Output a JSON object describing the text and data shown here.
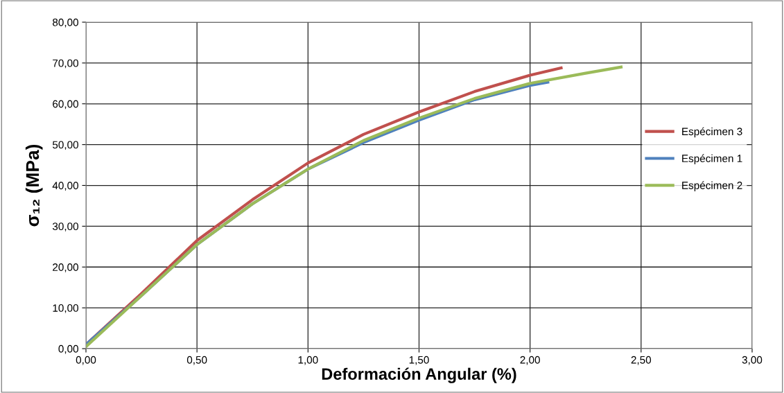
{
  "chart_data": {
    "type": "line",
    "xlabel": "Deformación Angular (%)",
    "ylabel": "σ₁₂ (MPa)",
    "xlim": [
      0,
      3
    ],
    "ylim": [
      0,
      80
    ],
    "xticks": [
      {
        "value": 0,
        "label": "0,00"
      },
      {
        "value": 0.5,
        "label": "0,50"
      },
      {
        "value": 1,
        "label": "1,00"
      },
      {
        "value": 1.5,
        "label": "1,50"
      },
      {
        "value": 2,
        "label": "2,00"
      },
      {
        "value": 2.5,
        "label": "2,50"
      },
      {
        "value": 3,
        "label": "3,00"
      }
    ],
    "yticks": [
      {
        "value": 0,
        "label": "0,00"
      },
      {
        "value": 10,
        "label": "10,00"
      },
      {
        "value": 20,
        "label": "20,00"
      },
      {
        "value": 30,
        "label": "30,00"
      },
      {
        "value": 40,
        "label": "40,00"
      },
      {
        "value": 50,
        "label": "50,00"
      },
      {
        "value": 60,
        "label": "60,00"
      },
      {
        "value": 70,
        "label": "70,00"
      },
      {
        "value": 80,
        "label": "80,00"
      }
    ],
    "grid": true,
    "legend": "right",
    "marker": "none",
    "line_style": "solid",
    "series": [
      {
        "name": "Espécimen 3",
        "color": "#c0504d",
        "x": [
          0,
          0.25,
          0.5,
          0.75,
          1.0,
          1.25,
          1.5,
          1.75,
          2.0,
          2.14
        ],
        "values": [
          1.0,
          13.5,
          26.5,
          36.5,
          45.5,
          52.5,
          58,
          63,
          67,
          68.8
        ]
      },
      {
        "name": "Espécimen 1",
        "color": "#4f81bd",
        "x": [
          0,
          0.25,
          0.5,
          0.75,
          1.0,
          1.25,
          1.5,
          1.75,
          2.0,
          2.08
        ],
        "values": [
          1.0,
          13,
          25.5,
          35.5,
          44,
          50.5,
          56,
          61,
          64.5,
          65.3
        ]
      },
      {
        "name": "Espécimen 2",
        "color": "#9bbb59",
        "x": [
          0,
          0.25,
          0.5,
          0.75,
          1.0,
          1.25,
          1.5,
          1.75,
          2.0,
          2.25,
          2.41
        ],
        "values": [
          0.5,
          13,
          25.5,
          35.5,
          44,
          51,
          56.5,
          61.3,
          65,
          67.5,
          69.0
        ]
      }
    ]
  }
}
